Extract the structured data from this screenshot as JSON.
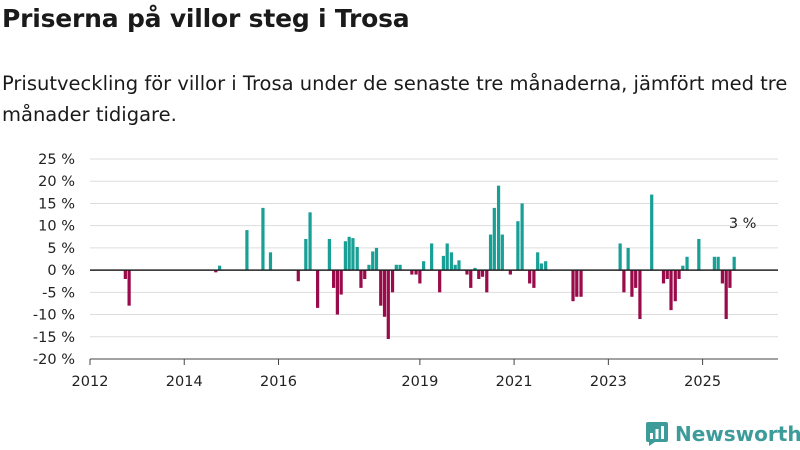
{
  "header": {
    "title": "Priserna på villor steg i Trosa",
    "subtitle": "Prisutveckling för villor i Trosa under de senaste tre månaderna, jämfört med tre månader tidigare."
  },
  "brand": {
    "name": "Newsworthy",
    "icon": "newsworthy-logo-icon"
  },
  "colors": {
    "positive": "#18a096",
    "negative": "#990b4a",
    "grid": "#dddddd",
    "brand": "#3d9c9a"
  },
  "chart_data": {
    "type": "bar",
    "title": "Priserna på villor steg i Trosa",
    "xlabel": "",
    "ylabel": "",
    "ylim": [
      -20,
      25
    ],
    "xlim": [
      2012.0,
      2026.6
    ],
    "yticks": [
      {
        "value": 25,
        "label": "25 %"
      },
      {
        "value": 20,
        "label": "20 %"
      },
      {
        "value": 15,
        "label": "15 %"
      },
      {
        "value": 10,
        "label": "10 %"
      },
      {
        "value": 5,
        "label": "5 %"
      },
      {
        "value": 0,
        "label": "0 %"
      },
      {
        "value": -5,
        "label": "-5 %"
      },
      {
        "value": -10,
        "label": "-10 %"
      },
      {
        "value": -15,
        "label": "-15 %"
      },
      {
        "value": -20,
        "label": "-20 %"
      }
    ],
    "xticks": [
      {
        "value": 2012.0,
        "label": "2012"
      },
      {
        "value": 2014.0,
        "label": "2014"
      },
      {
        "value": 2016.0,
        "label": "2016"
      },
      {
        "value": 2019.0,
        "label": "2019"
      },
      {
        "value": 2021.0,
        "label": "2021"
      },
      {
        "value": 2023.0,
        "label": "2023"
      },
      {
        "value": 2025.0,
        "label": "2025"
      }
    ],
    "grid": true,
    "annotation": {
      "label": "3 %",
      "t": 2025.85,
      "value": 3
    },
    "series": [
      {
        "name": "Prisutveckling",
        "points": [
          [
            2012.75,
            -2
          ],
          [
            2012.83,
            -8
          ],
          [
            2014.67,
            -0.5
          ],
          [
            2014.75,
            1
          ],
          [
            2015.33,
            9
          ],
          [
            2015.67,
            14
          ],
          [
            2015.83,
            4
          ],
          [
            2016.42,
            -2.5
          ],
          [
            2016.58,
            7
          ],
          [
            2016.67,
            13
          ],
          [
            2016.83,
            -8.5
          ],
          [
            2017.08,
            7
          ],
          [
            2017.17,
            -4
          ],
          [
            2017.25,
            -10
          ],
          [
            2017.33,
            -5.5
          ],
          [
            2017.42,
            6.5
          ],
          [
            2017.5,
            7.5
          ],
          [
            2017.58,
            7.2
          ],
          [
            2017.67,
            5.2
          ],
          [
            2017.75,
            -4
          ],
          [
            2017.83,
            -2
          ],
          [
            2017.92,
            1.2
          ],
          [
            2018.0,
            4.2
          ],
          [
            2018.08,
            5
          ],
          [
            2018.17,
            -8
          ],
          [
            2018.25,
            -10.5
          ],
          [
            2018.33,
            -15.5
          ],
          [
            2018.42,
            -5
          ],
          [
            2018.5,
            1.2
          ],
          [
            2018.58,
            1.2
          ],
          [
            2018.83,
            -1
          ],
          [
            2018.92,
            -1
          ],
          [
            2019.0,
            -3
          ],
          [
            2019.08,
            2
          ],
          [
            2019.25,
            6
          ],
          [
            2019.42,
            -5
          ],
          [
            2019.5,
            3.2
          ],
          [
            2019.58,
            6
          ],
          [
            2019.67,
            4
          ],
          [
            2019.75,
            1.2
          ],
          [
            2019.83,
            2.2
          ],
          [
            2020.0,
            -1
          ],
          [
            2020.08,
            -4
          ],
          [
            2020.17,
            0.5
          ],
          [
            2020.25,
            -2
          ],
          [
            2020.33,
            -1.5
          ],
          [
            2020.42,
            -5
          ],
          [
            2020.5,
            8
          ],
          [
            2020.58,
            14
          ],
          [
            2020.67,
            19
          ],
          [
            2020.75,
            8
          ],
          [
            2020.92,
            -1
          ],
          [
            2021.08,
            11
          ],
          [
            2021.17,
            15
          ],
          [
            2021.33,
            -3
          ],
          [
            2021.42,
            -4
          ],
          [
            2021.5,
            4
          ],
          [
            2021.58,
            1.5
          ],
          [
            2021.67,
            2
          ],
          [
            2022.25,
            -7
          ],
          [
            2022.33,
            -6
          ],
          [
            2022.42,
            -6
          ],
          [
            2023.25,
            6
          ],
          [
            2023.33,
            -5
          ],
          [
            2023.42,
            5
          ],
          [
            2023.5,
            -6
          ],
          [
            2023.58,
            -4
          ],
          [
            2023.67,
            -11
          ],
          [
            2023.92,
            17
          ],
          [
            2024.17,
            -3
          ],
          [
            2024.25,
            -2
          ],
          [
            2024.33,
            -9
          ],
          [
            2024.42,
            -7
          ],
          [
            2024.5,
            -2
          ],
          [
            2024.58,
            1
          ],
          [
            2024.67,
            3
          ],
          [
            2024.92,
            7
          ],
          [
            2025.25,
            3
          ],
          [
            2025.33,
            3
          ],
          [
            2025.42,
            -3
          ],
          [
            2025.5,
            -11
          ],
          [
            2025.58,
            -4
          ],
          [
            2025.67,
            3
          ]
        ]
      }
    ]
  }
}
